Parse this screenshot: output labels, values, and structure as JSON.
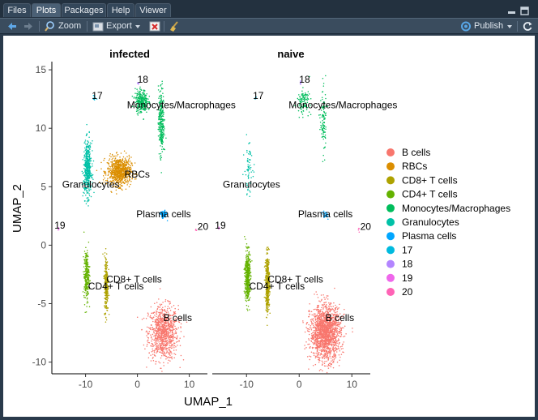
{
  "tabs": [
    {
      "label": "Files",
      "active": false
    },
    {
      "label": "Plots",
      "active": true
    },
    {
      "label": "Packages",
      "active": false
    },
    {
      "label": "Help",
      "active": false
    },
    {
      "label": "Viewer",
      "active": false
    }
  ],
  "toolbar": {
    "zoom_label": "Zoom",
    "export_label": "Export",
    "publish_label": "Publish"
  },
  "icons": [
    "back-arrow-icon",
    "forward-arrow-icon",
    "zoom-icon",
    "export-icon",
    "chevron-down-icon",
    "remove-plot-icon",
    "broom-icon",
    "publish-icon",
    "refresh-icon",
    "minimize-icon",
    "maximize-icon"
  ],
  "colors": {
    "B cells": "#F8766D",
    "RBCs": "#DB8E00",
    "CD8+ T cells": "#AEA200",
    "CD4+ T cells": "#64B200",
    "Monocytes/Macrophages": "#00BD5C",
    "Granulocytes": "#00C1A7",
    "Plasma cells": "#00A6FF",
    "17": "#00BADE",
    "18": "#B385FF",
    "19": "#EF67EB",
    "20": "#FF63B6"
  },
  "chart_data": {
    "type": "scatter",
    "panels": [
      "infected",
      "naive"
    ],
    "xlabel": "UMAP_1",
    "ylabel": "UMAP_2",
    "xticks": [
      -10,
      0,
      10
    ],
    "yticks": [
      -10,
      -5,
      0,
      5,
      10,
      15
    ],
    "xlim": [
      -16.5,
      13.5
    ],
    "ylim": [
      -11,
      15.7
    ],
    "legend": {
      "position": "right",
      "entries": [
        "B cells",
        "RBCs",
        "CD8+ T cells",
        "CD4+ T cells",
        "Monocytes/Macrophages",
        "Granulocytes",
        "Plasma cells",
        "17",
        "18",
        "19",
        "20"
      ]
    },
    "clusters": [
      {
        "name": "B cells",
        "label": "B cells",
        "label_pos": [
          5,
          -6.5
        ],
        "counts": {
          "infected": 900,
          "naive": 1600
        },
        "blobs": [
          {
            "cx": 5,
            "cy": -7.5,
            "sx": 2.6,
            "sy": 2.1
          }
        ]
      },
      {
        "name": "RBCs",
        "label": "RBCs",
        "label_pos": [
          -2.5,
          5.8
        ],
        "counts": {
          "infected": 750,
          "naive": 0
        },
        "blobs": [
          {
            "cx": -3.5,
            "cy": 6.3,
            "sx": 2.1,
            "sy": 1.1
          }
        ]
      },
      {
        "name": "CD8+ T cells",
        "label": "CD8+ T cells",
        "label_pos": [
          -6,
          -3.2
        ],
        "counts": {
          "infected": 280,
          "naive": 400
        },
        "blobs": [
          {
            "cx": -6.0,
            "cy": -3.3,
            "sx": 0.35,
            "sy": 2.2
          }
        ]
      },
      {
        "name": "CD4+ T cells",
        "label": "CD4+ T cells",
        "label_pos": [
          -9.5,
          -3.8
        ],
        "counts": {
          "infected": 260,
          "naive": 450
        },
        "blobs": [
          {
            "cx": -9.8,
            "cy": -2.6,
            "sx": 0.45,
            "sy": 1.9
          }
        ]
      },
      {
        "name": "Monocytes/Macrophages",
        "label": "Monocytes/Macrophages",
        "label_pos": [
          -2,
          11.7
        ],
        "counts": {
          "infected": 550,
          "naive": 220
        },
        "blobs": [
          {
            "cx": 4.6,
            "cy": 10.6,
            "sx": 0.5,
            "sy": 2.6
          },
          {
            "cx": 0.8,
            "cy": 12.3,
            "sx": 1.1,
            "sy": 0.9
          }
        ]
      },
      {
        "name": "Granulocytes",
        "label": "Granulocytes",
        "label_pos": [
          -14.5,
          4.9
        ],
        "counts": {
          "infected": 450,
          "naive": 70
        },
        "blobs": [
          {
            "cx": -9.6,
            "cy": 6.5,
            "sx": 0.7,
            "sy": 2.1
          }
        ]
      },
      {
        "name": "Plasma cells",
        "label": "Plasma cells",
        "label_pos": [
          -0.2,
          2.4
        ],
        "counts": {
          "infected": 90,
          "naive": 25
        },
        "blobs": [
          {
            "cx": 5,
            "cy": 2.6,
            "sx": 0.55,
            "sy": 0.3
          }
        ]
      },
      {
        "name": "17",
        "label": "17",
        "label_pos": [
          -8.8,
          12.5
        ],
        "counts": {
          "infected": 12,
          "naive": 6
        },
        "blobs": [
          {
            "cx": -8.3,
            "cy": 12.6,
            "sx": 0.2,
            "sy": 0.2
          }
        ]
      },
      {
        "name": "18",
        "label": "18",
        "label_pos": [
          0,
          13.9
        ],
        "counts": {
          "infected": 6,
          "naive": 5
        },
        "blobs": [
          {
            "cx": 0.2,
            "cy": 13.9,
            "sx": 0.2,
            "sy": 0.2
          }
        ]
      },
      {
        "name": "19",
        "label": "19",
        "label_pos": [
          -16,
          1.4
        ],
        "counts": {
          "infected": 4,
          "naive": 4
        },
        "blobs": [
          {
            "cx": -15.2,
            "cy": 1.4,
            "sx": 0.15,
            "sy": 0.15
          }
        ]
      },
      {
        "name": "20",
        "label": "20",
        "label_pos": [
          11.6,
          1.3
        ],
        "counts": {
          "infected": 4,
          "naive": 4
        },
        "blobs": [
          {
            "cx": 11.3,
            "cy": 1.3,
            "sx": 0.15,
            "sy": 0.15
          }
        ]
      }
    ]
  }
}
